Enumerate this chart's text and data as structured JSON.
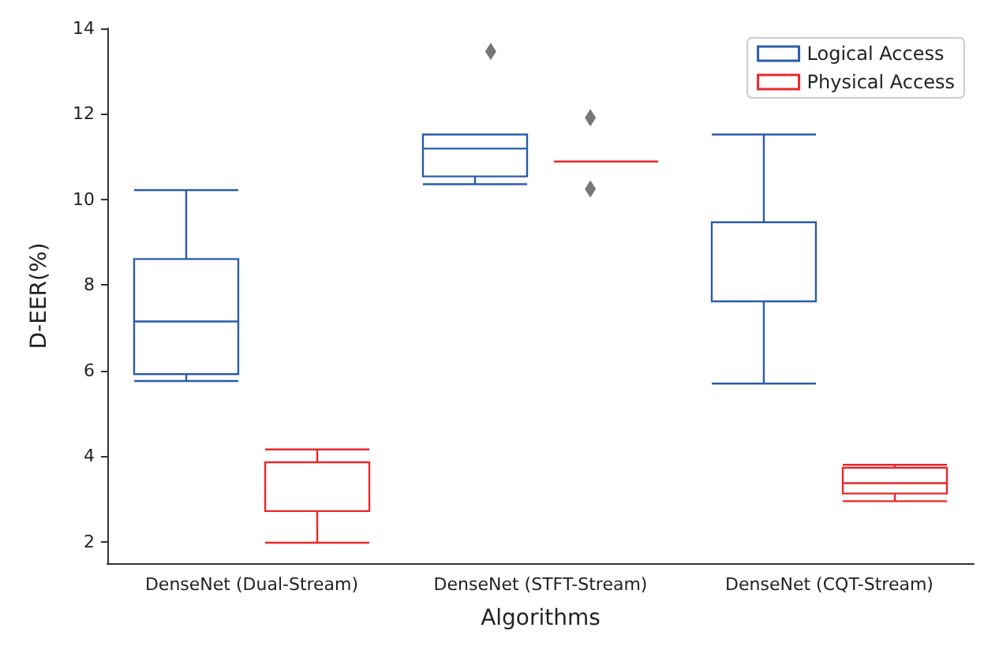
{
  "chart_data": {
    "type": "box",
    "xlabel": "Algorithms",
    "ylabel": "D-EER(%)",
    "categories": [
      "DenseNet (Dual-Stream)",
      "DenseNet (STFT-Stream)",
      "DenseNet (CQT-Stream)"
    ],
    "ylim": [
      1.5,
      14
    ],
    "yticks": [
      2,
      4,
      6,
      8,
      10,
      12,
      14
    ],
    "grid": false,
    "legend": "top right",
    "series": [
      {
        "name": "Logical Access",
        "color": "#2a5caa",
        "boxes": [
          {
            "low": 5.76,
            "q1": 5.92,
            "median": 7.15,
            "q3": 8.61,
            "high": 10.22
          },
          {
            "low": 10.36,
            "q1": 10.54,
            "median": 11.19,
            "q3": 11.52,
            "high": 11.52,
            "outliers": [
              13.46
            ]
          },
          {
            "low": 5.7,
            "q1": 7.62,
            "median": 9.47,
            "q3": 9.47,
            "high": 11.52
          }
        ]
      },
      {
        "name": "Physical Access",
        "color": "#e8282a",
        "boxes": [
          {
            "low": 1.98,
            "q1": 2.72,
            "median": 2.72,
            "q3": 3.86,
            "high": 4.16
          },
          {
            "low": 10.89,
            "q1": 10.89,
            "median": 10.89,
            "q3": 10.89,
            "high": 10.89,
            "outliers": [
              11.91,
              10.25
            ]
          },
          {
            "low": 2.95,
            "q1": 3.13,
            "median": 3.37,
            "q3": 3.73,
            "high": 3.8
          }
        ]
      }
    ]
  }
}
